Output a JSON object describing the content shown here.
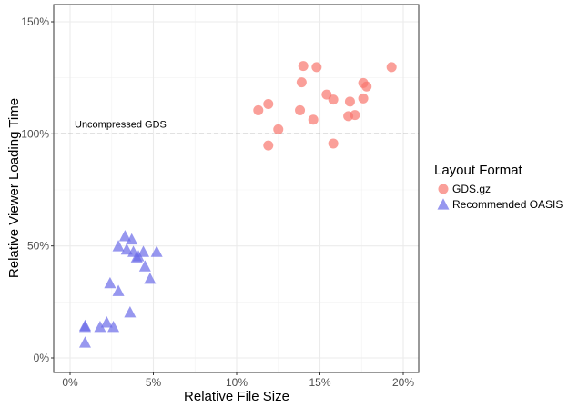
{
  "chart_data": {
    "type": "scatter",
    "title": "",
    "xlabel": "Relative File Size",
    "ylabel": "Relative Viewer Loading Time",
    "xlim": [
      -1,
      21
    ],
    "ylim": [
      -4,
      154
    ],
    "x_unit": "percent",
    "y_unit": "percent",
    "x_ticks": [
      0,
      5,
      10,
      15,
      20
    ],
    "x_tick_labels": [
      "0%",
      "5%",
      "10%",
      "15%",
      "20%"
    ],
    "y_ticks": [
      0,
      50,
      100,
      150
    ],
    "y_tick_labels": [
      "0%",
      "50%",
      "100%",
      "150%"
    ],
    "grid": true,
    "reference_line": {
      "y": 100,
      "style": "dashed",
      "label": "Uncompressed GDS"
    },
    "legend": {
      "title": "Layout Format",
      "position": "right"
    },
    "series": [
      {
        "name": "GDS.gz",
        "marker": "circle",
        "color": "#F8766D",
        "points": [
          [
            11.3,
            110.5
          ],
          [
            11.9,
            113.3
          ],
          [
            11.9,
            94.8
          ],
          [
            12.5,
            102.0
          ],
          [
            13.8,
            110.5
          ],
          [
            13.9,
            123.0
          ],
          [
            14.0,
            130.3
          ],
          [
            14.6,
            106.3
          ],
          [
            14.8,
            129.8
          ],
          [
            15.4,
            117.5
          ],
          [
            15.8,
            115.3
          ],
          [
            15.8,
            95.7
          ],
          [
            16.7,
            107.9
          ],
          [
            16.8,
            114.4
          ],
          [
            17.1,
            108.4
          ],
          [
            17.6,
            115.8
          ],
          [
            17.6,
            122.7
          ],
          [
            17.8,
            121.1
          ],
          [
            19.3,
            129.8
          ]
        ]
      },
      {
        "name": "Recommended OASIS",
        "marker": "triangle",
        "color": "#6B6BE8",
        "points": [
          [
            0.9,
            6.5
          ],
          [
            0.9,
            13.5
          ],
          [
            0.9,
            14.0
          ],
          [
            1.8,
            13.5
          ],
          [
            2.2,
            15.5
          ],
          [
            2.6,
            13.5
          ],
          [
            2.4,
            33.0
          ],
          [
            2.9,
            29.5
          ],
          [
            2.9,
            49.5
          ],
          [
            3.3,
            54.0
          ],
          [
            3.4,
            48.0
          ],
          [
            3.7,
            52.5
          ],
          [
            3.8,
            47.0
          ],
          [
            4.0,
            44.5
          ],
          [
            4.1,
            45.0
          ],
          [
            4.4,
            47.0
          ],
          [
            4.5,
            40.5
          ],
          [
            4.8,
            35.0
          ],
          [
            5.2,
            47.0
          ],
          [
            3.6,
            20.0
          ]
        ]
      }
    ]
  }
}
